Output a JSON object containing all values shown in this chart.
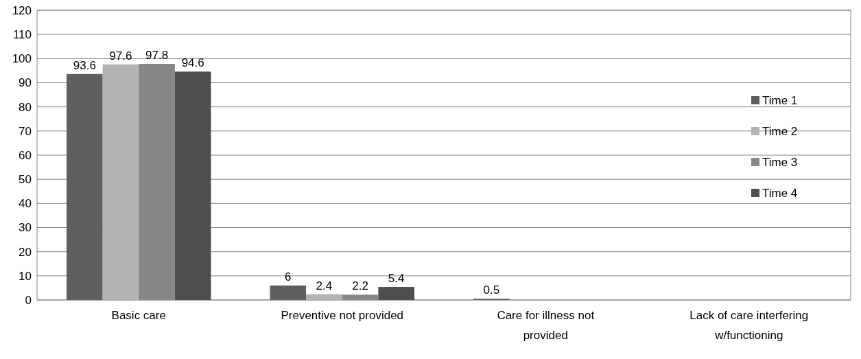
{
  "chart_data": {
    "type": "bar",
    "categories": [
      "Basic care",
      "Preventive not provided",
      "Care for illness not provided",
      "Lack of care interfering w/functioning"
    ],
    "series": [
      {
        "name": "Time 1",
        "color": "#5f5f5f",
        "values": [
          93.6,
          6,
          0.5,
          null
        ]
      },
      {
        "name": "Time 2",
        "color": "#b3b3b3",
        "values": [
          97.6,
          2.4,
          null,
          null
        ]
      },
      {
        "name": "Time 3",
        "color": "#878787",
        "values": [
          97.8,
          2.2,
          null,
          null
        ]
      },
      {
        "name": "Time 4",
        "color": "#4e4e4e",
        "values": [
          94.6,
          5.4,
          null,
          null
        ]
      }
    ],
    "ylim": [
      0,
      120
    ],
    "yticks": [
      0,
      10,
      20,
      30,
      40,
      50,
      60,
      70,
      80,
      90,
      100,
      110,
      120
    ],
    "grid": "y",
    "legend": "right",
    "data_labels": true
  }
}
